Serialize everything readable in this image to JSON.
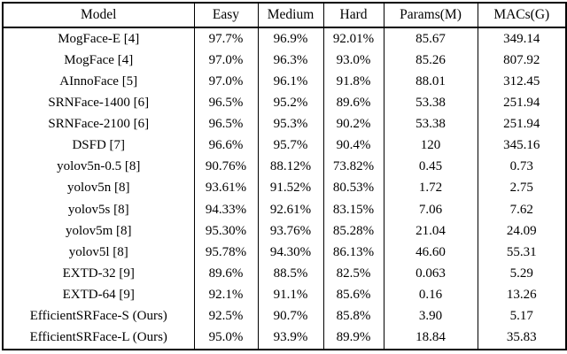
{
  "table": {
    "columns": [
      "Model",
      "Easy",
      "Medium",
      "Hard",
      "Params(M)",
      "MACs(G)"
    ],
    "rows": [
      {
        "cells": [
          "MogFace-E [4]",
          "97.7%",
          "96.9%",
          "92.01%",
          "85.67",
          "349.14"
        ],
        "bold_cols": [
          1,
          2
        ]
      },
      {
        "cells": [
          "MogFace [4]",
          "97.0%",
          "96.3%",
          "93.0%",
          "85.26",
          "807.92"
        ],
        "bold_cols": [
          3
        ]
      },
      {
        "cells": [
          "AInnoFace [5]",
          "97.0%",
          "96.1%",
          "91.8%",
          "88.01",
          "312.45"
        ],
        "bold_cols": []
      },
      {
        "cells": [
          "SRNFace-1400 [6]",
          "96.5%",
          "95.2%",
          "89.6%",
          "53.38",
          "251.94"
        ],
        "bold_cols": []
      },
      {
        "cells": [
          "SRNFace-2100 [6]",
          "96.5%",
          "95.3%",
          "90.2%",
          "53.38",
          "251.94"
        ],
        "bold_cols": []
      },
      {
        "cells": [
          "DSFD [7]",
          "96.6%",
          "95.7%",
          "90.4%",
          "120",
          "345.16"
        ],
        "bold_cols": []
      },
      {
        "cells": [
          "yolov5n-0.5 [8]",
          "90.76%",
          "88.12%",
          "73.82%",
          "0.45",
          "0.73"
        ],
        "bold_cols": []
      },
      {
        "cells": [
          "yolov5n [8]",
          "93.61%",
          "91.52%",
          "80.53%",
          "1.72",
          "2.75"
        ],
        "bold_cols": []
      },
      {
        "cells": [
          "yolov5s [8]",
          "94.33%",
          "92.61%",
          "83.15%",
          "7.06",
          "7.62"
        ],
        "bold_cols": []
      },
      {
        "cells": [
          "yolov5m [8]",
          "95.30%",
          "93.76%",
          "85.28%",
          "21.04",
          "24.09"
        ],
        "bold_cols": []
      },
      {
        "cells": [
          "yolov5l [8]",
          "95.78%",
          "94.30%",
          "86.13%",
          "46.60",
          "55.31"
        ],
        "bold_cols": []
      },
      {
        "cells": [
          "EXTD-32 [9]",
          "89.6%",
          "88.5%",
          "82.5%",
          "0.063",
          "5.29"
        ],
        "bold_cols": []
      },
      {
        "cells": [
          "EXTD-64 [9]",
          "92.1%",
          "91.1%",
          "85.6%",
          "0.16",
          "13.26"
        ],
        "bold_cols": []
      },
      {
        "cells": [
          "EfficientSRFace-S (Ours)",
          "92.5%",
          "90.7%",
          "85.8%",
          "3.90",
          "5.17"
        ],
        "bold_cols": []
      },
      {
        "cells": [
          "EfficientSRFace-L (Ours)",
          "95.0%",
          "93.9%",
          "89.9%",
          "18.84",
          "35.83"
        ],
        "bold_cols": []
      }
    ],
    "colors": {
      "border": "#000000",
      "text": "#000000",
      "background": "#ffffff"
    }
  }
}
